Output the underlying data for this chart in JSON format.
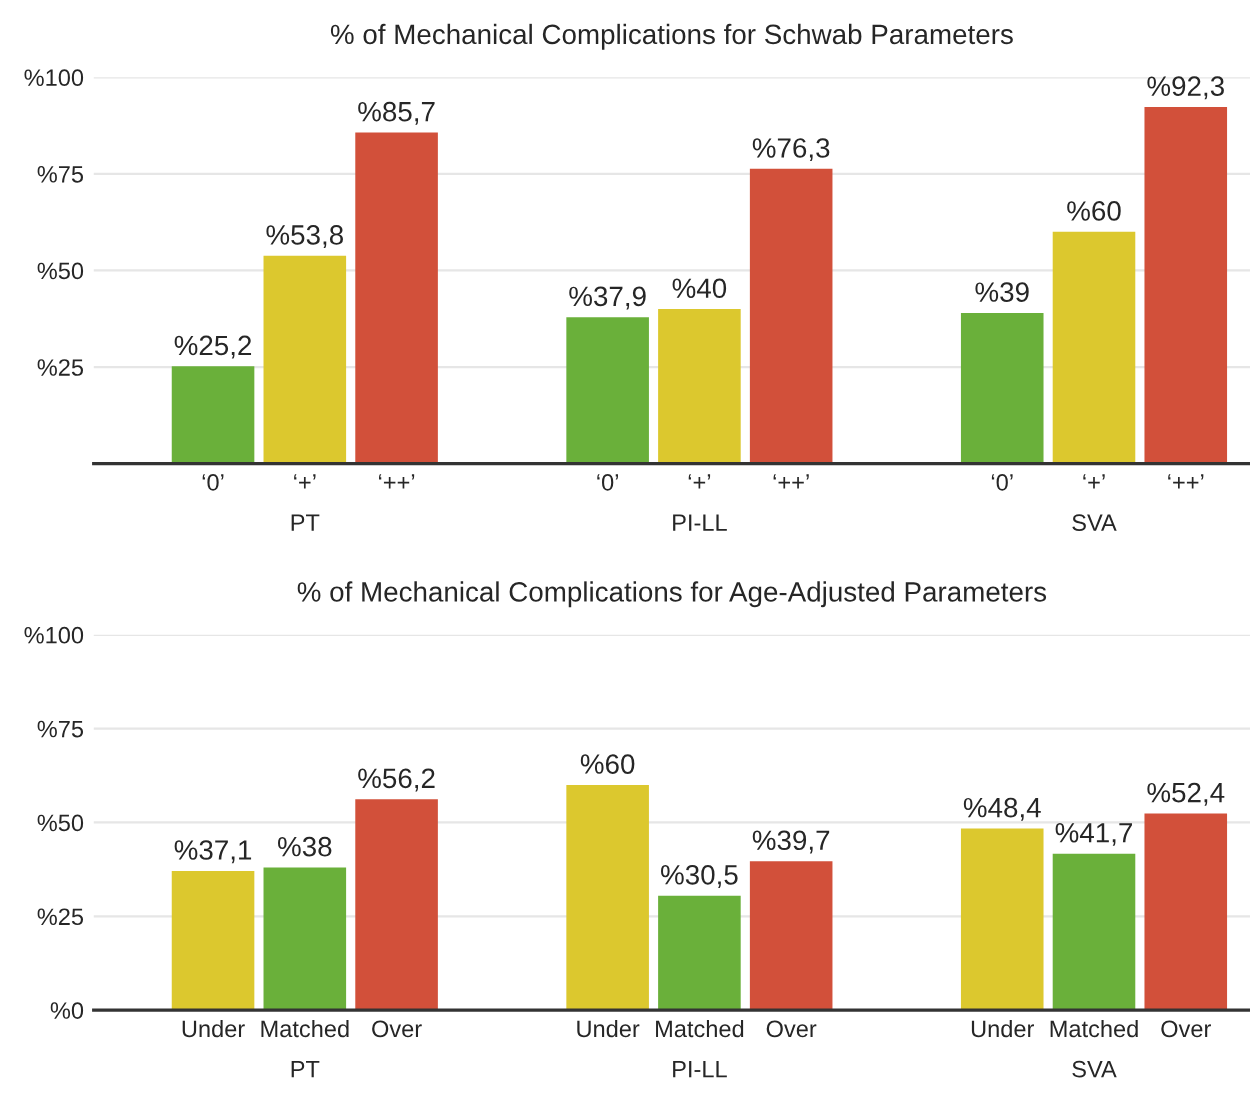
{
  "chart_data": [
    {
      "type": "bar",
      "title": "% of Mechanical Complications for Schwab Parameters",
      "categories": [
        "‘0’",
        "‘+’",
        "‘++’",
        "‘0’",
        "‘+’",
        "‘++’",
        "‘0’",
        "‘+’",
        "‘++’"
      ],
      "values": [
        25.2,
        53.8,
        85.7,
        37.9,
        40,
        76.3,
        39,
        60,
        92.3
      ],
      "colors": [
        "#6ab03a",
        "#dcc82e",
        "#d2503a",
        "#6ab03a",
        "#dcc82e",
        "#d2503a",
        "#6ab03a",
        "#dcc82e",
        "#d2503a"
      ],
      "value_labels": [
        "%25,2",
        "%53,8",
        "%85,7",
        "%37,9",
        "%40",
        "%76,3",
        "%39",
        "%60",
        "%92,3"
      ],
      "ylim": [
        0,
        100
      ],
      "yticks": [
        {
          "value": 0,
          "label": null
        },
        {
          "value": 25,
          "label": "%25"
        },
        {
          "value": 50,
          "label": "%50"
        },
        {
          "value": 75,
          "label": "%75"
        },
        {
          "value": 100,
          "label": "%100"
        }
      ],
      "grid": "y",
      "annotations": [
        "PT",
        "PI-LL",
        "SVA"
      ]
    },
    {
      "type": "bar",
      "title": "% of Mechanical Complications for Age-Adjusted Parameters",
      "categories": [
        "Under",
        "Matched",
        "Over",
        "Under",
        "Matched",
        "Over",
        "Under",
        "Matched",
        "Over"
      ],
      "values": [
        37.1,
        38,
        56.2,
        60,
        30.5,
        39.7,
        48.4,
        41.7,
        52.4
      ],
      "colors": [
        "#dcc82e",
        "#6ab03a",
        "#d2503a",
        "#dcc82e",
        "#6ab03a",
        "#d2503a",
        "#dcc82e",
        "#6ab03a",
        "#d2503a"
      ],
      "value_labels": [
        "%37,1",
        "%38",
        "%56,2",
        "%60",
        "%30,5",
        "%39,7",
        "%48,4",
        "%41,7",
        "%52,4"
      ],
      "ylim": [
        0,
        100
      ],
      "yticks": [
        {
          "value": 0,
          "label": "%0"
        },
        {
          "value": 25,
          "label": "%25"
        },
        {
          "value": 50,
          "label": "%50"
        },
        {
          "value": 75,
          "label": "%75"
        },
        {
          "value": 100,
          "label": "%100"
        }
      ],
      "grid": "y",
      "annotations": [
        "PT",
        "PI-LL",
        "SVA"
      ]
    }
  ]
}
